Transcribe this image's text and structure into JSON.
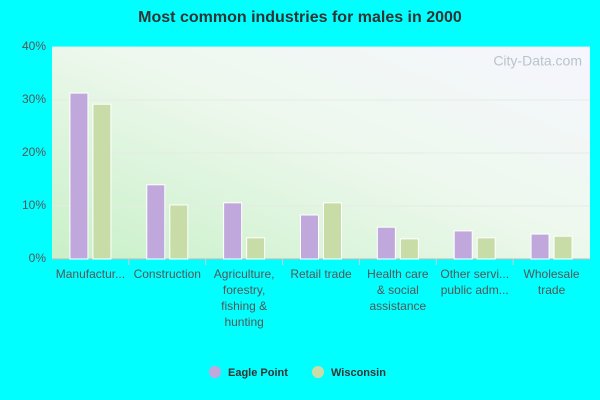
{
  "chart_data": {
    "type": "bar",
    "title": "Most common industries for males in 2000",
    "categories": [
      "Manufactur...",
      "Construction",
      "Agriculture,\nforestry,\nfishing &\nhunting",
      "Retail trade",
      "Health care\n& social\nassistance",
      "Other servi...\npublic adm...",
      "Wholesale\ntrade"
    ],
    "series": [
      {
        "name": "Eagle Point",
        "color": "#c0a8dc",
        "values": [
          31.3,
          14.0,
          10.6,
          8.3,
          6.0,
          5.3,
          4.7
        ]
      },
      {
        "name": "Wisconsin",
        "color": "#c8dca8",
        "values": [
          29.2,
          10.2,
          4.0,
          10.6,
          3.8,
          4.0,
          4.3
        ]
      }
    ],
    "ylim": [
      0,
      40
    ],
    "yticks": [
      {
        "value": 0,
        "label": "0%"
      },
      {
        "value": 10,
        "label": "10%"
      },
      {
        "value": 20,
        "label": "20%"
      },
      {
        "value": 30,
        "label": "30%"
      },
      {
        "value": 40,
        "label": "40%"
      }
    ],
    "grid": true,
    "watermark": "City-Data.com"
  }
}
